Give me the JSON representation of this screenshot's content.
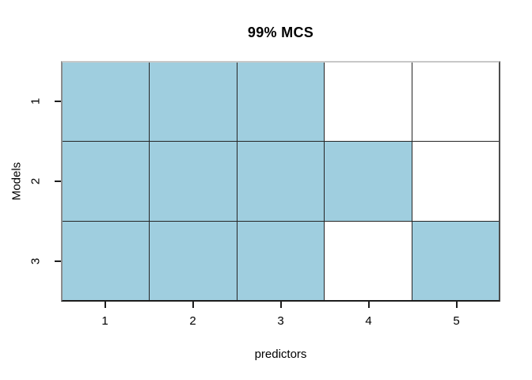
{
  "chart_data": {
    "type": "heatmap",
    "title": "99% MCS",
    "xlabel": "predictors",
    "ylabel": "Models",
    "x_ticks": [
      "1",
      "2",
      "3",
      "4",
      "5"
    ],
    "y_ticks": [
      "1",
      "2",
      "3"
    ],
    "y_axis_note": "Model 1 at top, labels rotated 90deg counterclockwise",
    "rows": [
      {
        "model": "1",
        "included": [
          1,
          1,
          1,
          0,
          0
        ]
      },
      {
        "model": "2",
        "included": [
          1,
          1,
          1,
          1,
          0
        ]
      },
      {
        "model": "3",
        "included": [
          1,
          1,
          1,
          0,
          1
        ]
      }
    ],
    "cell_color_included": "#9FCEDF",
    "cell_color_excluded": "#FFFFFF",
    "grid_line_color": "#262626",
    "legend": "none",
    "grid": "full cell borders"
  }
}
